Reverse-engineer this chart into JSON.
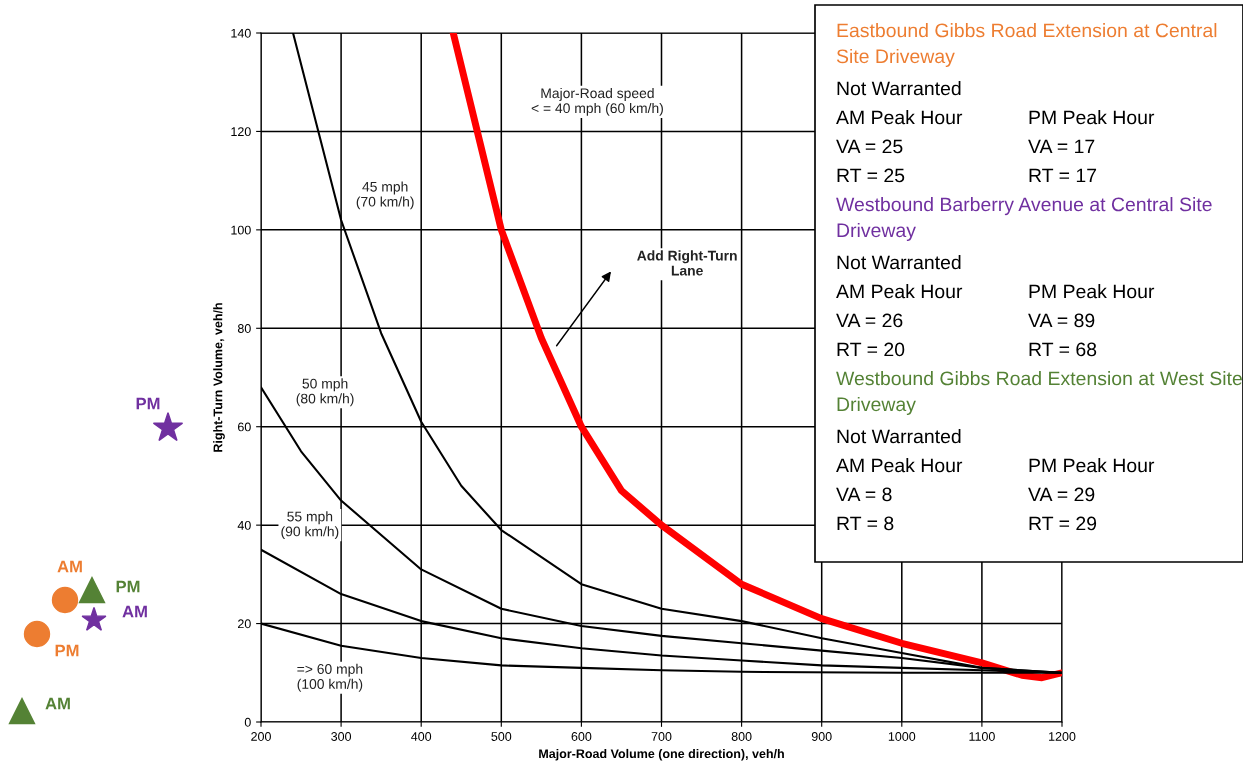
{
  "chart_data": {
    "type": "line",
    "xlabel": "Major-Road Volume (one direction), veh/h",
    "ylabel": "Right-Turn Volume, veh/h",
    "xlim": [
      200,
      1200
    ],
    "ylim": [
      0,
      140
    ],
    "xticks": [
      200,
      300,
      400,
      500,
      600,
      700,
      800,
      900,
      1000,
      1100,
      1200
    ],
    "yticks": [
      0,
      20,
      40,
      60,
      80,
      100,
      120,
      140
    ],
    "grid": true,
    "legend": false,
    "marker": "none",
    "line_style": "solid",
    "series": [
      {
        "color": "#ff0000",
        "x": [
          440,
          500,
          550,
          600,
          650,
          700,
          800,
          900,
          1000,
          1100,
          1150,
          1175,
          1200
        ],
        "values": [
          140,
          100,
          78,
          60,
          47,
          40,
          28,
          21,
          16,
          12,
          9.5,
          9,
          10
        ]
      },
      {
        "color": "#000000",
        "x": [
          240,
          300,
          350,
          400,
          450,
          500,
          600,
          700,
          800,
          900,
          1000,
          1100,
          1200
        ],
        "values": [
          140,
          102,
          79,
          61,
          48,
          39,
          28,
          23,
          20.5,
          17,
          14,
          11,
          10
        ]
      },
      {
        "color": "#000000",
        "x": [
          200,
          250,
          300,
          400,
          500,
          600,
          700,
          800,
          900,
          1000,
          1100,
          1200
        ],
        "values": [
          68,
          55,
          45,
          31,
          23,
          19.5,
          17.5,
          16,
          14.5,
          13,
          11,
          10
        ]
      },
      {
        "color": "#000000",
        "x": [
          200,
          300,
          400,
          500,
          600,
          700,
          800,
          900,
          1000,
          1100,
          1200
        ],
        "values": [
          35,
          26,
          20.5,
          17,
          15,
          13.5,
          12.5,
          11.5,
          11,
          10.5,
          10
        ]
      },
      {
        "color": "#000000",
        "x": [
          200,
          300,
          400,
          500,
          600,
          700,
          800,
          1000,
          1200
        ],
        "values": [
          20,
          15.5,
          13,
          11.5,
          11,
          10.5,
          10.2,
          10,
          10
        ]
      }
    ],
    "annotations": [
      "Major-Road speed\n< = 40 mph (60 km/h)",
      "45 mph\n(70 km/h)",
      "50 mph\n(80 km/h)",
      "55 mph\n(90 km/h)",
      "=> 60 mph\n(100 km/h)",
      "Add Right-Turn\nLane",
      "Eastbound Gibbs Road Extension at Central Site Driveway",
      "Not Warranted",
      "AM Peak Hour",
      "PM Peak Hour",
      "VA = 25",
      "VA = 17",
      "RT = 25",
      "RT = 17",
      "Westbound Barberry Avenue at Central Site Driveway",
      "Not Warranted",
      "AM Peak Hour",
      "PM Peak Hour",
      "VA = 26",
      "VA = 89",
      "RT = 20",
      "RT = 68",
      "Westbound Gibbs Road Extension at West Site Driveway",
      "Not Warranted",
      "AM Peak Hour",
      "PM Peak Hour",
      "VA = 8",
      "VA = 29",
      "RT = 8",
      "RT = 29",
      "PM",
      "AM",
      "PM",
      "AM",
      "PM",
      "AM"
    ]
  }
}
